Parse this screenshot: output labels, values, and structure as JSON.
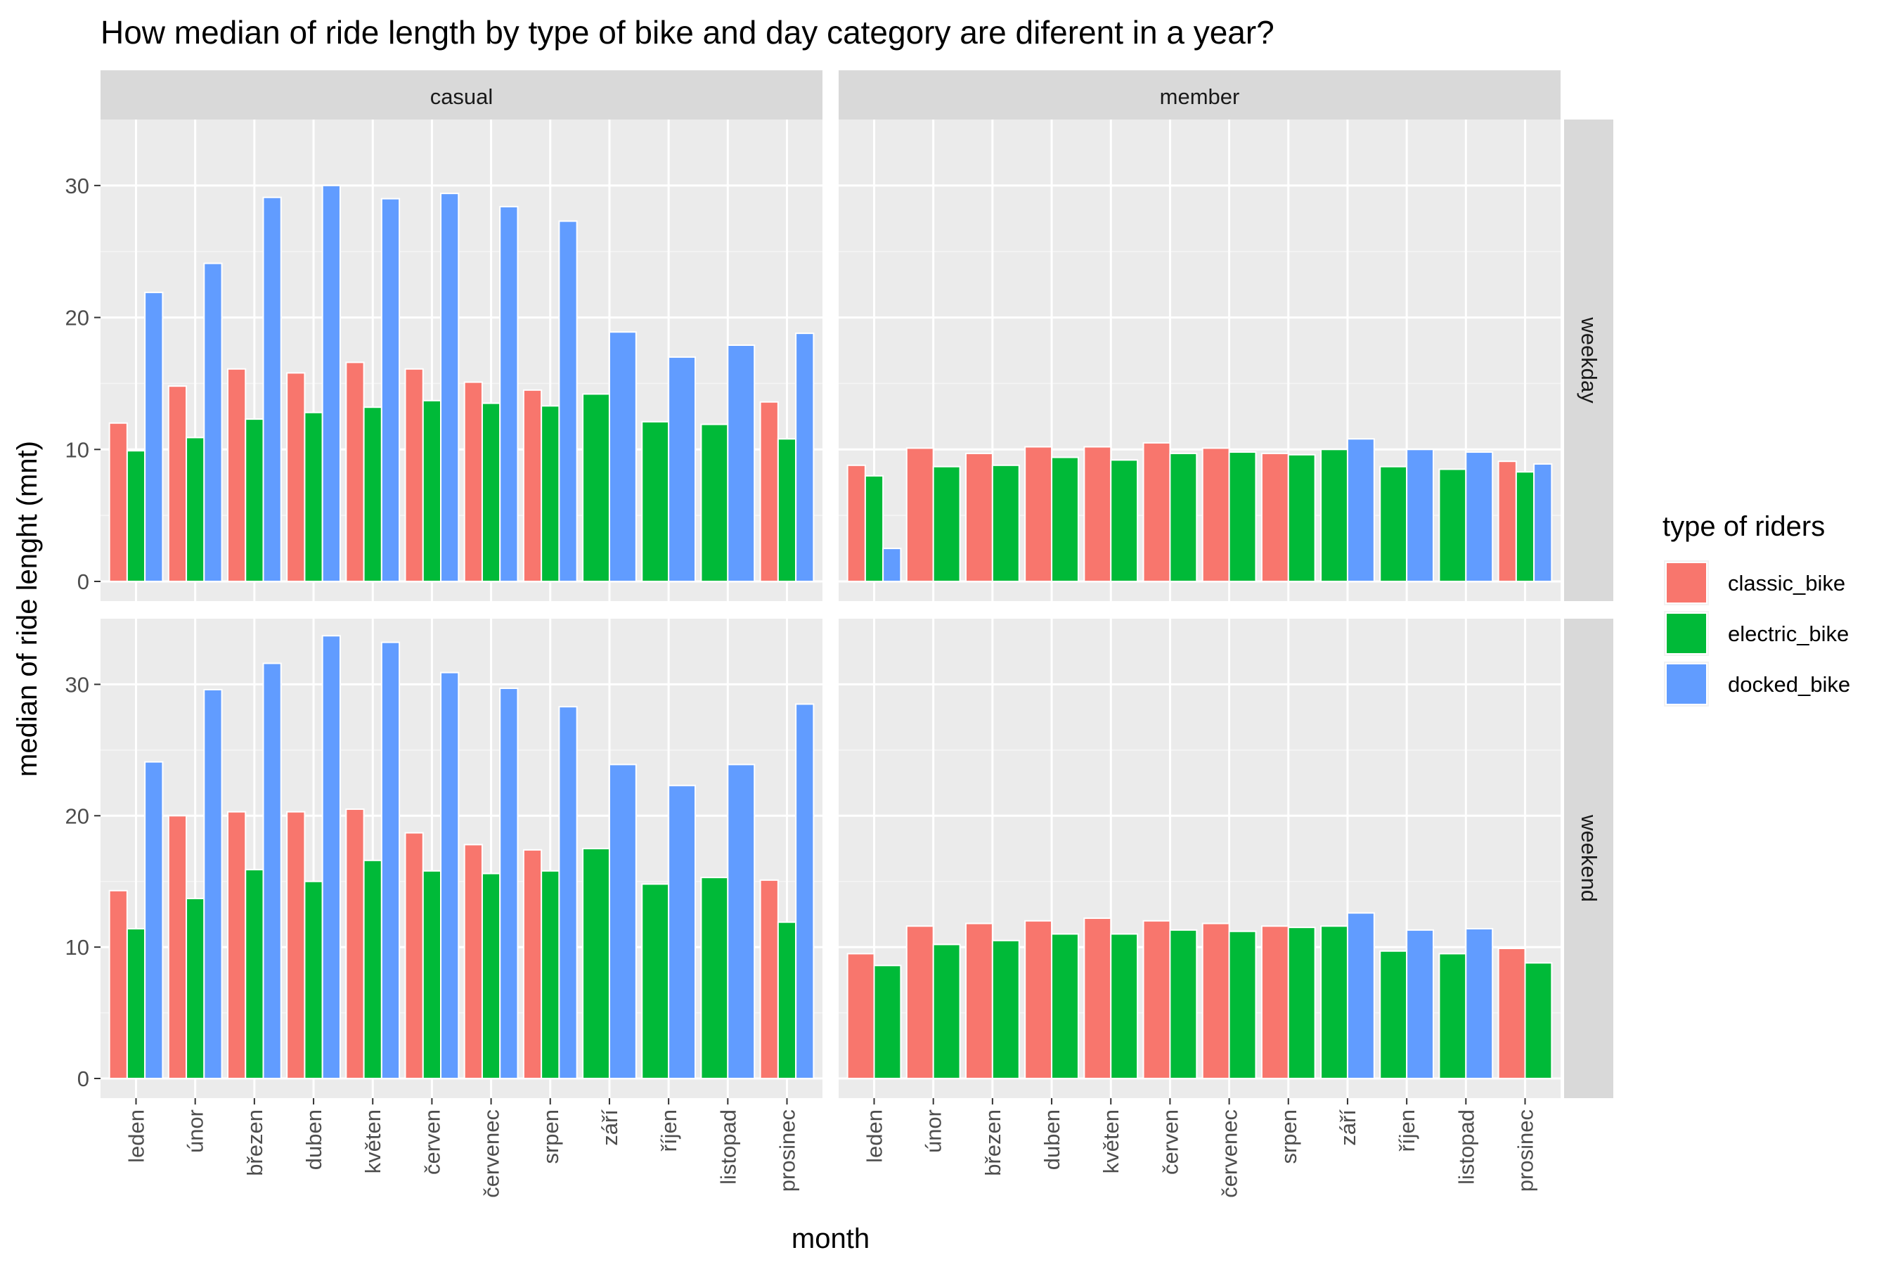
{
  "chart_data": {
    "type": "bar",
    "title": "How median of ride length by type of bike and day category are diferent in a year?",
    "xlabel": "month",
    "ylabel": "median of ride lenght (mnt)",
    "ylim": [
      0,
      35
    ],
    "y_ticks": [
      0,
      10,
      20,
      30
    ],
    "grid": true,
    "facet_columns": [
      "casual",
      "member"
    ],
    "facet_rows": [
      "weekday",
      "weekend"
    ],
    "categories": [
      "leden",
      "únor",
      "březen",
      "duben",
      "květen",
      "červen",
      "červenec",
      "srpen",
      "září",
      "říjen",
      "listopad",
      "prosinec"
    ],
    "legend": {
      "title": "type of riders",
      "position": "right",
      "items": [
        {
          "name": "classic_bike",
          "color": "#F8766D"
        },
        {
          "name": "electric_bike",
          "color": "#00BA38"
        },
        {
          "name": "docked_bike",
          "color": "#619CFF"
        }
      ]
    },
    "panels": [
      {
        "column": "casual",
        "row": "weekday",
        "series": [
          {
            "name": "classic_bike",
            "values": [
              12.0,
              14.8,
              16.1,
              15.8,
              16.6,
              16.1,
              15.1,
              14.5,
              null,
              null,
              null,
              13.6
            ]
          },
          {
            "name": "electric_bike",
            "values": [
              9.9,
              10.9,
              12.3,
              12.8,
              13.2,
              13.7,
              13.5,
              13.3,
              14.2,
              12.1,
              11.9,
              10.8
            ]
          },
          {
            "name": "docked_bike",
            "values": [
              21.9,
              24.1,
              29.1,
              30.0,
              29.0,
              29.4,
              28.4,
              27.3,
              18.9,
              17.0,
              17.9,
              18.8
            ]
          }
        ]
      },
      {
        "column": "member",
        "row": "weekday",
        "series": [
          {
            "name": "classic_bike",
            "values": [
              8.8,
              10.1,
              9.7,
              10.2,
              10.2,
              10.5,
              10.1,
              9.7,
              null,
              null,
              null,
              9.1
            ]
          },
          {
            "name": "electric_bike",
            "values": [
              8.0,
              8.7,
              8.8,
              9.4,
              9.2,
              9.7,
              9.8,
              9.6,
              10.0,
              8.7,
              8.5,
              8.3
            ]
          },
          {
            "name": "docked_bike",
            "values": [
              2.5,
              null,
              null,
              null,
              null,
              null,
              null,
              null,
              10.8,
              10.0,
              9.8,
              8.9
            ]
          }
        ]
      },
      {
        "column": "casual",
        "row": "weekend",
        "series": [
          {
            "name": "classic_bike",
            "values": [
              14.3,
              20.0,
              20.3,
              20.3,
              20.5,
              18.7,
              17.8,
              17.4,
              null,
              null,
              null,
              15.1
            ]
          },
          {
            "name": "electric_bike",
            "values": [
              11.4,
              13.7,
              15.9,
              15.0,
              16.6,
              15.8,
              15.6,
              15.8,
              17.5,
              14.8,
              15.3,
              11.9
            ]
          },
          {
            "name": "docked_bike",
            "values": [
              24.1,
              29.6,
              31.6,
              33.7,
              33.2,
              30.9,
              29.7,
              28.3,
              23.9,
              22.3,
              23.9,
              28.5
            ]
          }
        ]
      },
      {
        "column": "member",
        "row": "weekend",
        "series": [
          {
            "name": "classic_bike",
            "values": [
              9.5,
              11.6,
              11.8,
              12.0,
              12.2,
              12.0,
              11.8,
              11.6,
              null,
              null,
              null,
              9.9
            ]
          },
          {
            "name": "electric_bike",
            "values": [
              8.6,
              10.2,
              10.5,
              11.0,
              11.0,
              11.3,
              11.2,
              11.5,
              11.6,
              9.7,
              9.5,
              8.8
            ]
          },
          {
            "name": "docked_bike",
            "values": [
              null,
              null,
              null,
              null,
              null,
              null,
              null,
              null,
              12.6,
              11.3,
              11.4,
              null
            ]
          }
        ]
      }
    ]
  }
}
